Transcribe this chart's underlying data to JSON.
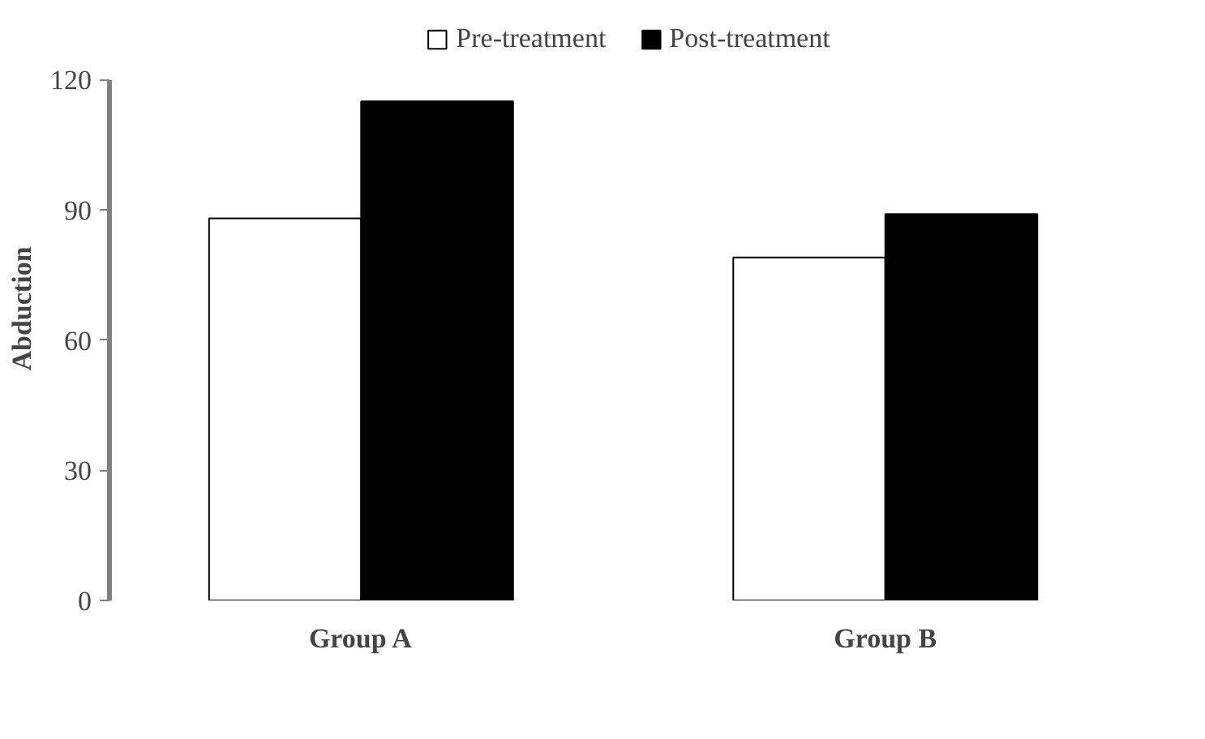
{
  "chart_data": {
    "type": "bar",
    "ylabel": "Abduction",
    "categories": [
      "Group A",
      "Group B"
    ],
    "series": [
      {
        "name": "Pre-treatment",
        "color": "#ffffff",
        "values": [
          88,
          79
        ]
      },
      {
        "name": "Post-treatment",
        "color": "#000000",
        "values": [
          115,
          89
        ]
      }
    ],
    "ylim": [
      0,
      120
    ],
    "yticks": [
      0,
      30,
      60,
      90,
      120
    ],
    "grid": false,
    "legend": "top"
  }
}
